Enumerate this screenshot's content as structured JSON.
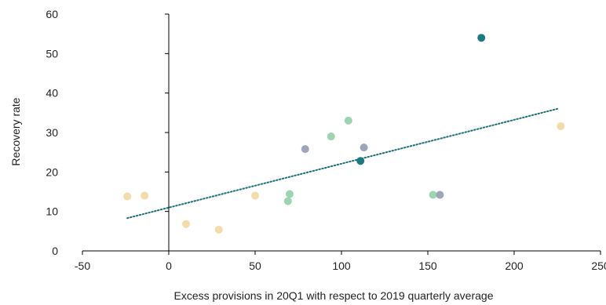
{
  "chart_data": {
    "type": "scatter",
    "title": "",
    "xlabel": "Excess provisions in 20Q1 with respect to 2019 quarterly average",
    "ylabel": "Recovery rate",
    "xlim": [
      -50,
      250
    ],
    "ylim": [
      0,
      60
    ],
    "xticks": [
      -50,
      0,
      50,
      100,
      150,
      200,
      250
    ],
    "yticks": [
      0,
      10,
      20,
      30,
      40,
      50,
      60
    ],
    "grid": false,
    "legend": "none",
    "series": [
      {
        "color": "#f2dcaa",
        "points": [
          {
            "x": -24,
            "y": 13.8
          },
          {
            "x": -14,
            "y": 14.0
          },
          {
            "x": 10,
            "y": 6.8
          },
          {
            "x": 29,
            "y": 5.4
          },
          {
            "x": 50,
            "y": 14.0
          },
          {
            "x": 227,
            "y": 31.6
          }
        ]
      },
      {
        "color": "#9bd6b0",
        "points": [
          {
            "x": 69,
            "y": 12.6
          },
          {
            "x": 70,
            "y": 14.4
          },
          {
            "x": 94,
            "y": 29.0
          },
          {
            "x": 104,
            "y": 33.0
          },
          {
            "x": 153,
            "y": 14.2
          }
        ]
      },
      {
        "color": "#9ea5b8",
        "points": [
          {
            "x": 79,
            "y": 25.8
          },
          {
            "x": 113,
            "y": 26.2
          },
          {
            "x": 157,
            "y": 14.2
          }
        ]
      },
      {
        "color": "#1a7a7f",
        "points": [
          {
            "x": 111,
            "y": 22.8
          },
          {
            "x": 181,
            "y": 54.0
          }
        ]
      }
    ],
    "trendline": {
      "style": "dotted",
      "color": "#1f6f7a",
      "from": {
        "x": -24,
        "y": 8.3
      },
      "to": {
        "x": 225,
        "y": 36.0
      }
    }
  }
}
